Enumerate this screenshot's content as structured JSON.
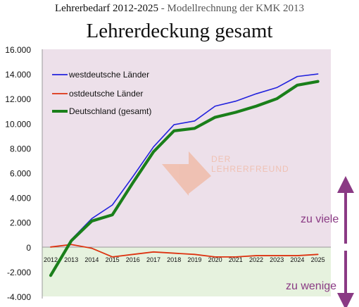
{
  "header": {
    "supertitle_main": "Lehrerbedarf 2012-2025",
    "supertitle_separator": " - ",
    "supertitle_sub": "Modellrechnung der KMK 2013"
  },
  "colors": {
    "upper_band": "#ede0ea",
    "lower_band": "#e6f2de",
    "west": "#2222dd",
    "east": "#dd3311",
    "total": "#1a7f1a",
    "arrow": "#8a3a84",
    "watermark": "#f2a987"
  },
  "watermark": {
    "text_line1": "DER",
    "text_line2": "LEHRERFREUND"
  },
  "annotations": {
    "too_many": "zu viele",
    "too_few": "zu wenige"
  },
  "chart_data": {
    "type": "line",
    "title": "Lehrerdeckung gesamt",
    "x": [
      "2012",
      "2013",
      "2014",
      "2015",
      "2016",
      "2017",
      "2018",
      "2019",
      "2020",
      "2021",
      "2022",
      "2023",
      "2024",
      "2025"
    ],
    "ylim": [
      -4000,
      16000
    ],
    "yticks": [
      16000,
      14000,
      12000,
      10000,
      8000,
      6000,
      4000,
      2000,
      0,
      -2000,
      -4000
    ],
    "ytick_labels": [
      "16.000",
      "14.000",
      "12.000",
      "10.000",
      "8.000",
      "6.000",
      "4.000",
      "2.000",
      "0",
      "-2.000",
      "-4.000"
    ],
    "grid": false,
    "legend_position": "top-left",
    "series": [
      {
        "name": "westdeutsche Länder",
        "color_key": "west",
        "values": [
          -2300,
          600,
          2300,
          3400,
          5700,
          8100,
          9900,
          10200,
          11400,
          11800,
          12400,
          12900,
          13800,
          14000
        ]
      },
      {
        "name": "ostdeutsche Länder",
        "color_key": "east",
        "values": [
          0,
          200,
          -100,
          -800,
          -600,
          -400,
          -500,
          -600,
          -800,
          -800,
          -700,
          -700,
          -700,
          -600
        ]
      },
      {
        "name": "Deutschland (gesamt)",
        "color_key": "total",
        "values": [
          -2300,
          500,
          2100,
          2600,
          5200,
          7700,
          9400,
          9600,
          10500,
          10900,
          11400,
          12000,
          13100,
          13400
        ]
      }
    ]
  }
}
